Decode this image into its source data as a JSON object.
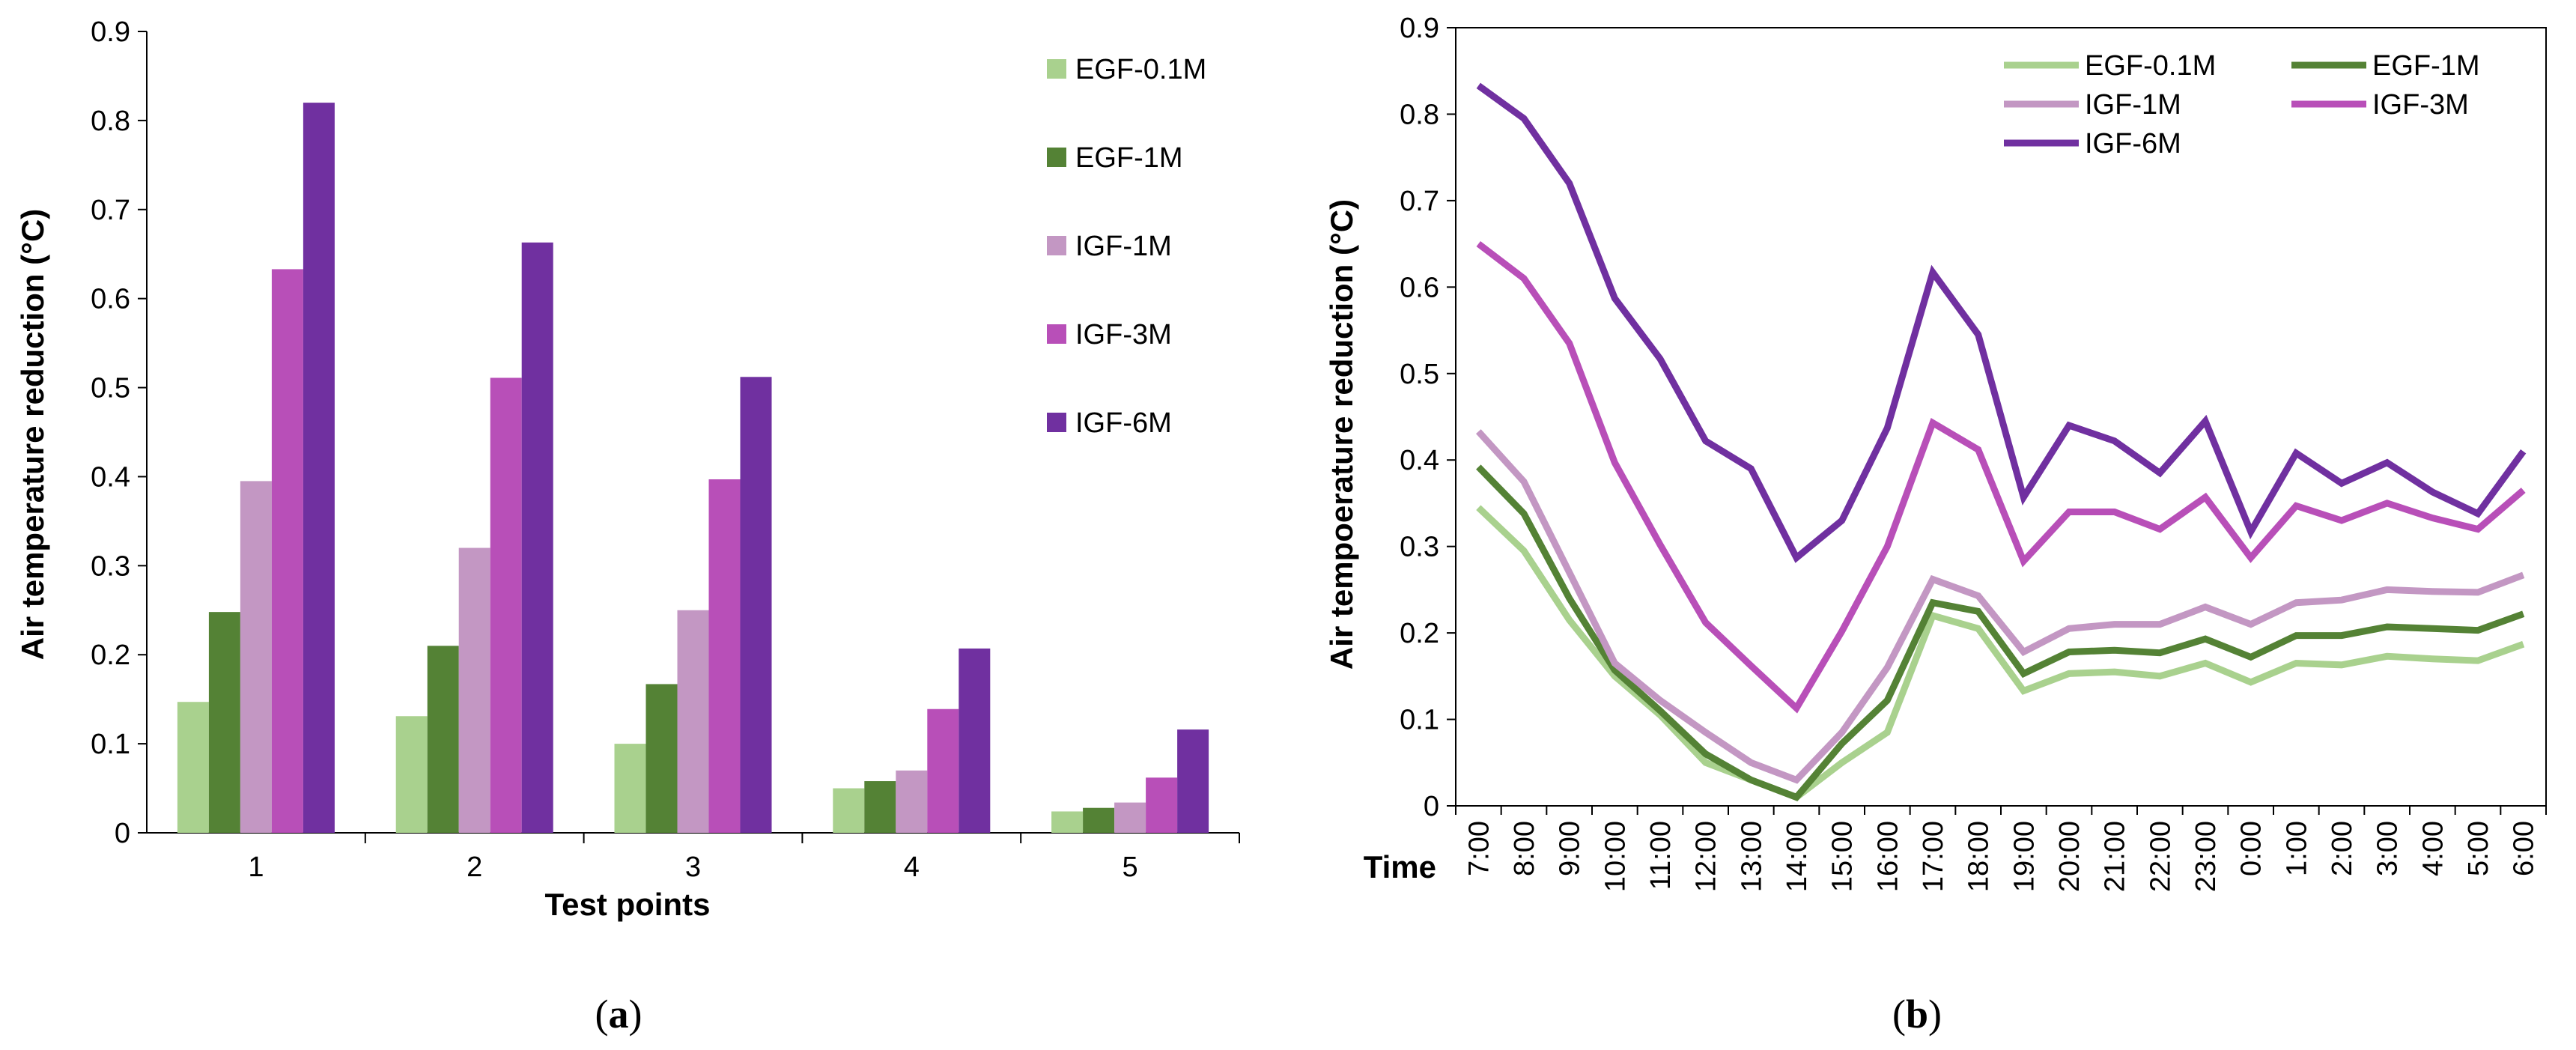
{
  "colors": {
    "EGF-0.1M": "#a9d18e",
    "EGF-1M": "#548235",
    "IGF-1M": "#c397c3",
    "IGF-3M": "#b84fb8",
    "IGF-6M": "#7030a0"
  },
  "chart_data": [
    {
      "type": "bar",
      "panel": "a",
      "panel_label": {
        "open": "(",
        "letter": "a",
        "close": ")"
      },
      "xlabel": "Test points",
      "ylabel": "Air temperature reduction (°C)",
      "ylim": [
        0,
        0.9
      ],
      "yticks": [
        "0",
        "0.1",
        "0.2",
        "0.3",
        "0.4",
        "0.5",
        "0.6",
        "0.7",
        "0.8",
        "0.9"
      ],
      "categories": [
        "1",
        "2",
        "3",
        "4",
        "5"
      ],
      "legend_position": "top-right",
      "series": [
        {
          "name": "EGF-0.1M",
          "values": [
            0.147,
            0.131,
            0.1,
            0.05,
            0.024
          ]
        },
        {
          "name": "EGF-1M",
          "values": [
            0.248,
            0.21,
            0.167,
            0.058,
            0.028
          ]
        },
        {
          "name": "IGF-1M",
          "values": [
            0.395,
            0.32,
            0.25,
            0.07,
            0.034
          ]
        },
        {
          "name": "IGF-3M",
          "values": [
            0.633,
            0.511,
            0.397,
            0.139,
            0.062
          ]
        },
        {
          "name": "IGF-6M",
          "values": [
            0.82,
            0.663,
            0.512,
            0.207,
            0.116
          ]
        }
      ]
    },
    {
      "type": "line",
      "panel": "b",
      "panel_label": {
        "open": "(",
        "letter": "b",
        "close": ")"
      },
      "xlabel": "Time",
      "ylabel": "Air tempoerature reduction (°C)",
      "ylim": [
        0,
        0.9
      ],
      "yticks": [
        "0",
        "0.1",
        "0.2",
        "0.3",
        "0.4",
        "0.5",
        "0.6",
        "0.7",
        "0.8",
        "0.9"
      ],
      "categories": [
        "7:00",
        "8:00",
        "9:00",
        "10:00",
        "11:00",
        "12:00",
        "13:00",
        "14:00",
        "15:00",
        "16:00",
        "17:00",
        "18:00",
        "19:00",
        "20:00",
        "21:00",
        "22:00",
        "23:00",
        "0:00",
        "1:00",
        "2:00",
        "3:00",
        "4:00",
        "5:00",
        "6:00"
      ],
      "legend_position": "top-right",
      "series": [
        {
          "name": "EGF-0.1M",
          "values": [
            0.345,
            0.295,
            0.215,
            0.15,
            0.105,
            0.05,
            0.03,
            0.01,
            0.05,
            0.085,
            0.22,
            0.205,
            0.133,
            0.153,
            0.155,
            0.15,
            0.165,
            0.143,
            0.165,
            0.163,
            0.173,
            0.17,
            0.168,
            0.187
          ]
        },
        {
          "name": "EGF-1M",
          "values": [
            0.392,
            0.338,
            0.24,
            0.157,
            0.11,
            0.06,
            0.03,
            0.01,
            0.072,
            0.122,
            0.235,
            0.225,
            0.153,
            0.178,
            0.18,
            0.177,
            0.193,
            0.172,
            0.197,
            0.197,
            0.207,
            0.205,
            0.203,
            0.222
          ]
        },
        {
          "name": "IGF-1M",
          "values": [
            0.433,
            0.375,
            0.27,
            0.165,
            0.122,
            0.085,
            0.05,
            0.03,
            0.085,
            0.16,
            0.262,
            0.243,
            0.178,
            0.205,
            0.21,
            0.21,
            0.23,
            0.21,
            0.235,
            0.238,
            0.25,
            0.248,
            0.247,
            0.267
          ]
        },
        {
          "name": "IGF-3M",
          "values": [
            0.65,
            0.61,
            0.535,
            0.397,
            0.302,
            0.212,
            0.162,
            0.113,
            0.202,
            0.3,
            0.443,
            0.412,
            0.283,
            0.34,
            0.34,
            0.32,
            0.357,
            0.287,
            0.347,
            0.33,
            0.35,
            0.333,
            0.32,
            0.365
          ]
        },
        {
          "name": "IGF-6M",
          "values": [
            0.833,
            0.795,
            0.72,
            0.587,
            0.517,
            0.422,
            0.39,
            0.287,
            0.33,
            0.437,
            0.617,
            0.545,
            0.357,
            0.44,
            0.422,
            0.385,
            0.445,
            0.317,
            0.408,
            0.373,
            0.397,
            0.363,
            0.338,
            0.41
          ]
        }
      ]
    }
  ]
}
